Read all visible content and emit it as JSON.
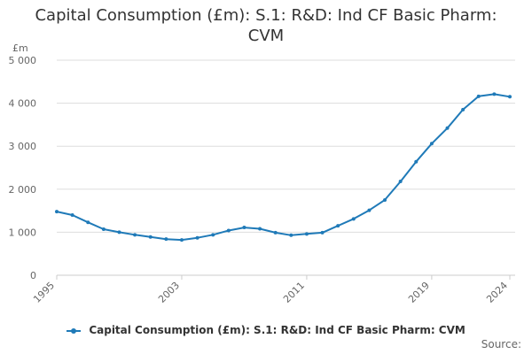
{
  "chart_data": {
    "type": "line",
    "title_lines": [
      "Capital Consumption (£m): S.1: R&D: Ind CF Basic Pharm:",
      "CVM"
    ],
    "ylabel": "£m",
    "xlabel": "",
    "ylim": [
      0,
      5000
    ],
    "y_ticks": [
      0,
      1000,
      2000,
      3000,
      4000,
      5000
    ],
    "y_tick_labels": [
      "0",
      "1 000",
      "2 000",
      "3 000",
      "4 000",
      "5 000"
    ],
    "xlim": [
      1995,
      2024
    ],
    "x_ticks": [
      1995,
      2003,
      2011,
      2019,
      2024
    ],
    "x_tick_labels": [
      "1995",
      "2003",
      "2011",
      "2019",
      "2024"
    ],
    "grid": true,
    "legend_position": "bottom",
    "series": [
      {
        "name": "Capital Consumption (£m): S.1: R&D: Ind CF Basic Pharm: CVM",
        "color": "#1f7ab8",
        "x": [
          1995,
          1996,
          1997,
          1998,
          1999,
          2000,
          2001,
          2002,
          2003,
          2004,
          2005,
          2006,
          2007,
          2008,
          2009,
          2010,
          2011,
          2012,
          2013,
          2014,
          2015,
          2016,
          2017,
          2018,
          2019,
          2020,
          2021,
          2022,
          2023,
          2024
        ],
        "values": [
          1480,
          1400,
          1230,
          1070,
          1000,
          940,
          890,
          840,
          820,
          870,
          940,
          1040,
          1110,
          1080,
          990,
          930,
          960,
          990,
          1150,
          1310,
          1510,
          1750,
          2180,
          2640,
          3060,
          3420,
          3850,
          4160,
          4210,
          4150
        ]
      }
    ]
  },
  "legend": {
    "label": "Capital Consumption (£m): S.1: R&D: Ind CF Basic Pharm: CVM"
  },
  "footer": {
    "source": "Source:"
  }
}
